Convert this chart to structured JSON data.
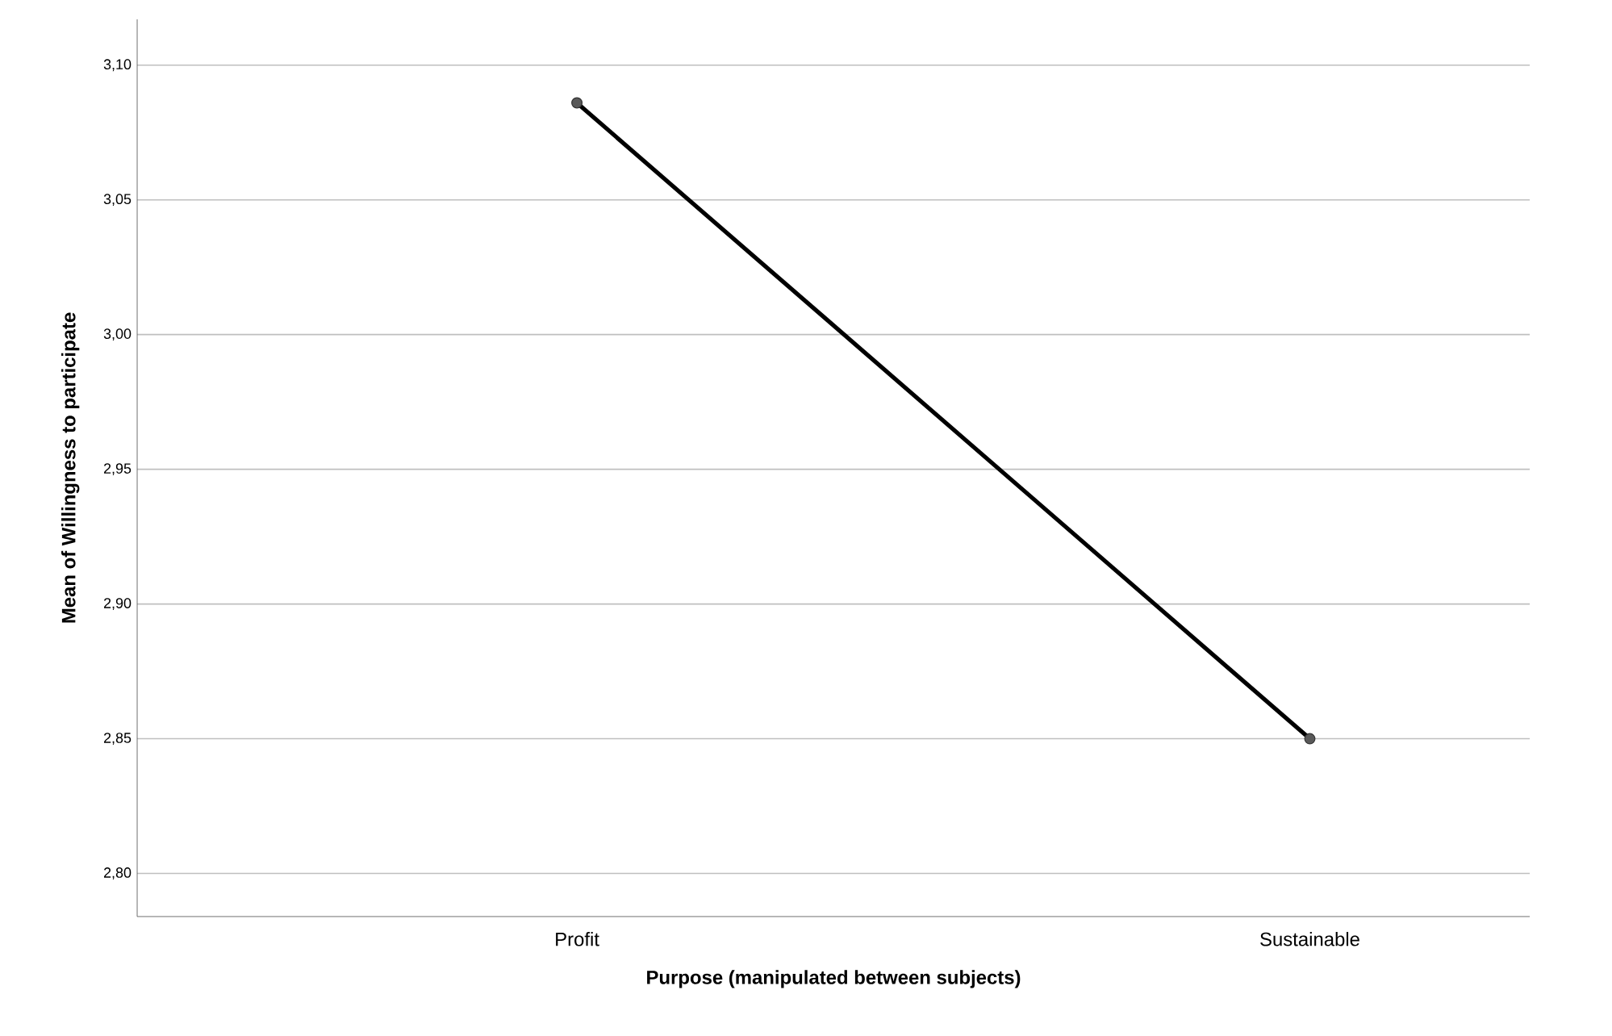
{
  "chart_data": {
    "type": "line",
    "xlabel": "Purpose (manipulated between subjects)",
    "ylabel": "Mean of Willingness to participate",
    "categories": [
      "Profit",
      "Sustainable"
    ],
    "values": [
      3.086,
      2.85
    ],
    "color": "#000000",
    "marker": "circle",
    "ylim": [
      2.784,
      3.117
    ],
    "yticks": [
      {
        "value": 2.8,
        "label": "2,80"
      },
      {
        "value": 2.85,
        "label": "2,85"
      },
      {
        "value": 2.9,
        "label": "2,90"
      },
      {
        "value": 2.95,
        "label": "2,95"
      },
      {
        "value": 3.0,
        "label": "3,00"
      },
      {
        "value": 3.05,
        "label": "3,05"
      },
      {
        "value": 3.1,
        "label": "3,10"
      }
    ],
    "grid": "y"
  }
}
